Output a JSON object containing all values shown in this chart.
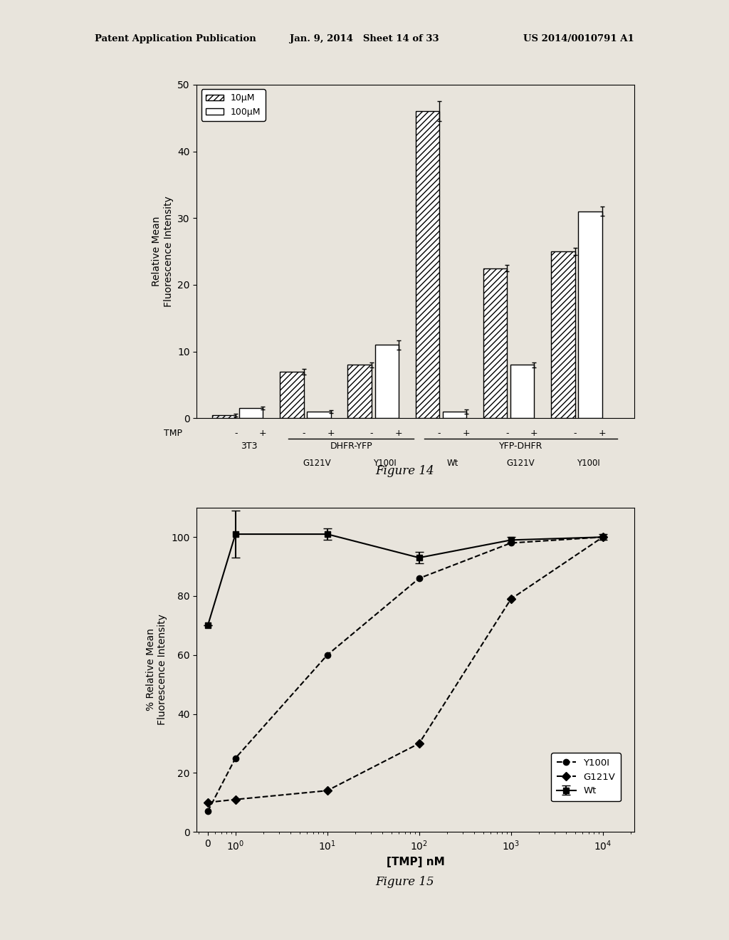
{
  "fig14": {
    "ylabel": "Relative Mean\nFluorescence Intensity",
    "ylim": [
      0,
      50
    ],
    "yticks": [
      0,
      10,
      20,
      30,
      40,
      50
    ],
    "bar_10uM": [
      0.5,
      7.0,
      8.0,
      46.0,
      22.5,
      25.0
    ],
    "bar_100uM": [
      1.5,
      1.0,
      11.0,
      1.0,
      8.0,
      31.0
    ],
    "err_10uM": [
      0.2,
      0.4,
      0.4,
      1.5,
      0.5,
      0.5
    ],
    "err_100uM": [
      0.2,
      0.2,
      0.7,
      0.3,
      0.4,
      0.7
    ],
    "legend_labels": [
      "10μM",
      "100μM"
    ]
  },
  "fig15": {
    "ylabel": "% Relative Mean\nFluorescence Intensity",
    "xlabel": "[TMP] nM",
    "ylim": [
      0,
      110
    ],
    "yticks": [
      0,
      20,
      40,
      60,
      80,
      100
    ],
    "wt_y": [
      70,
      101,
      101,
      93,
      99,
      100
    ],
    "wt_err": [
      0,
      8,
      2,
      2,
      1,
      1
    ],
    "y100i_y": [
      7,
      25,
      60,
      86,
      98,
      100
    ],
    "g121v_y": [
      10,
      11,
      14,
      30,
      79,
      100
    ],
    "legend_labels": [
      "Wt",
      "Y100I",
      "G121V"
    ]
  },
  "page_header_left": "Patent Application Publication",
  "page_header_mid": "Jan. 9, 2014   Sheet 14 of 33",
  "page_header_right": "US 2014/0010791 A1",
  "bg_color": "#e8e4dc",
  "white": "#ffffff"
}
